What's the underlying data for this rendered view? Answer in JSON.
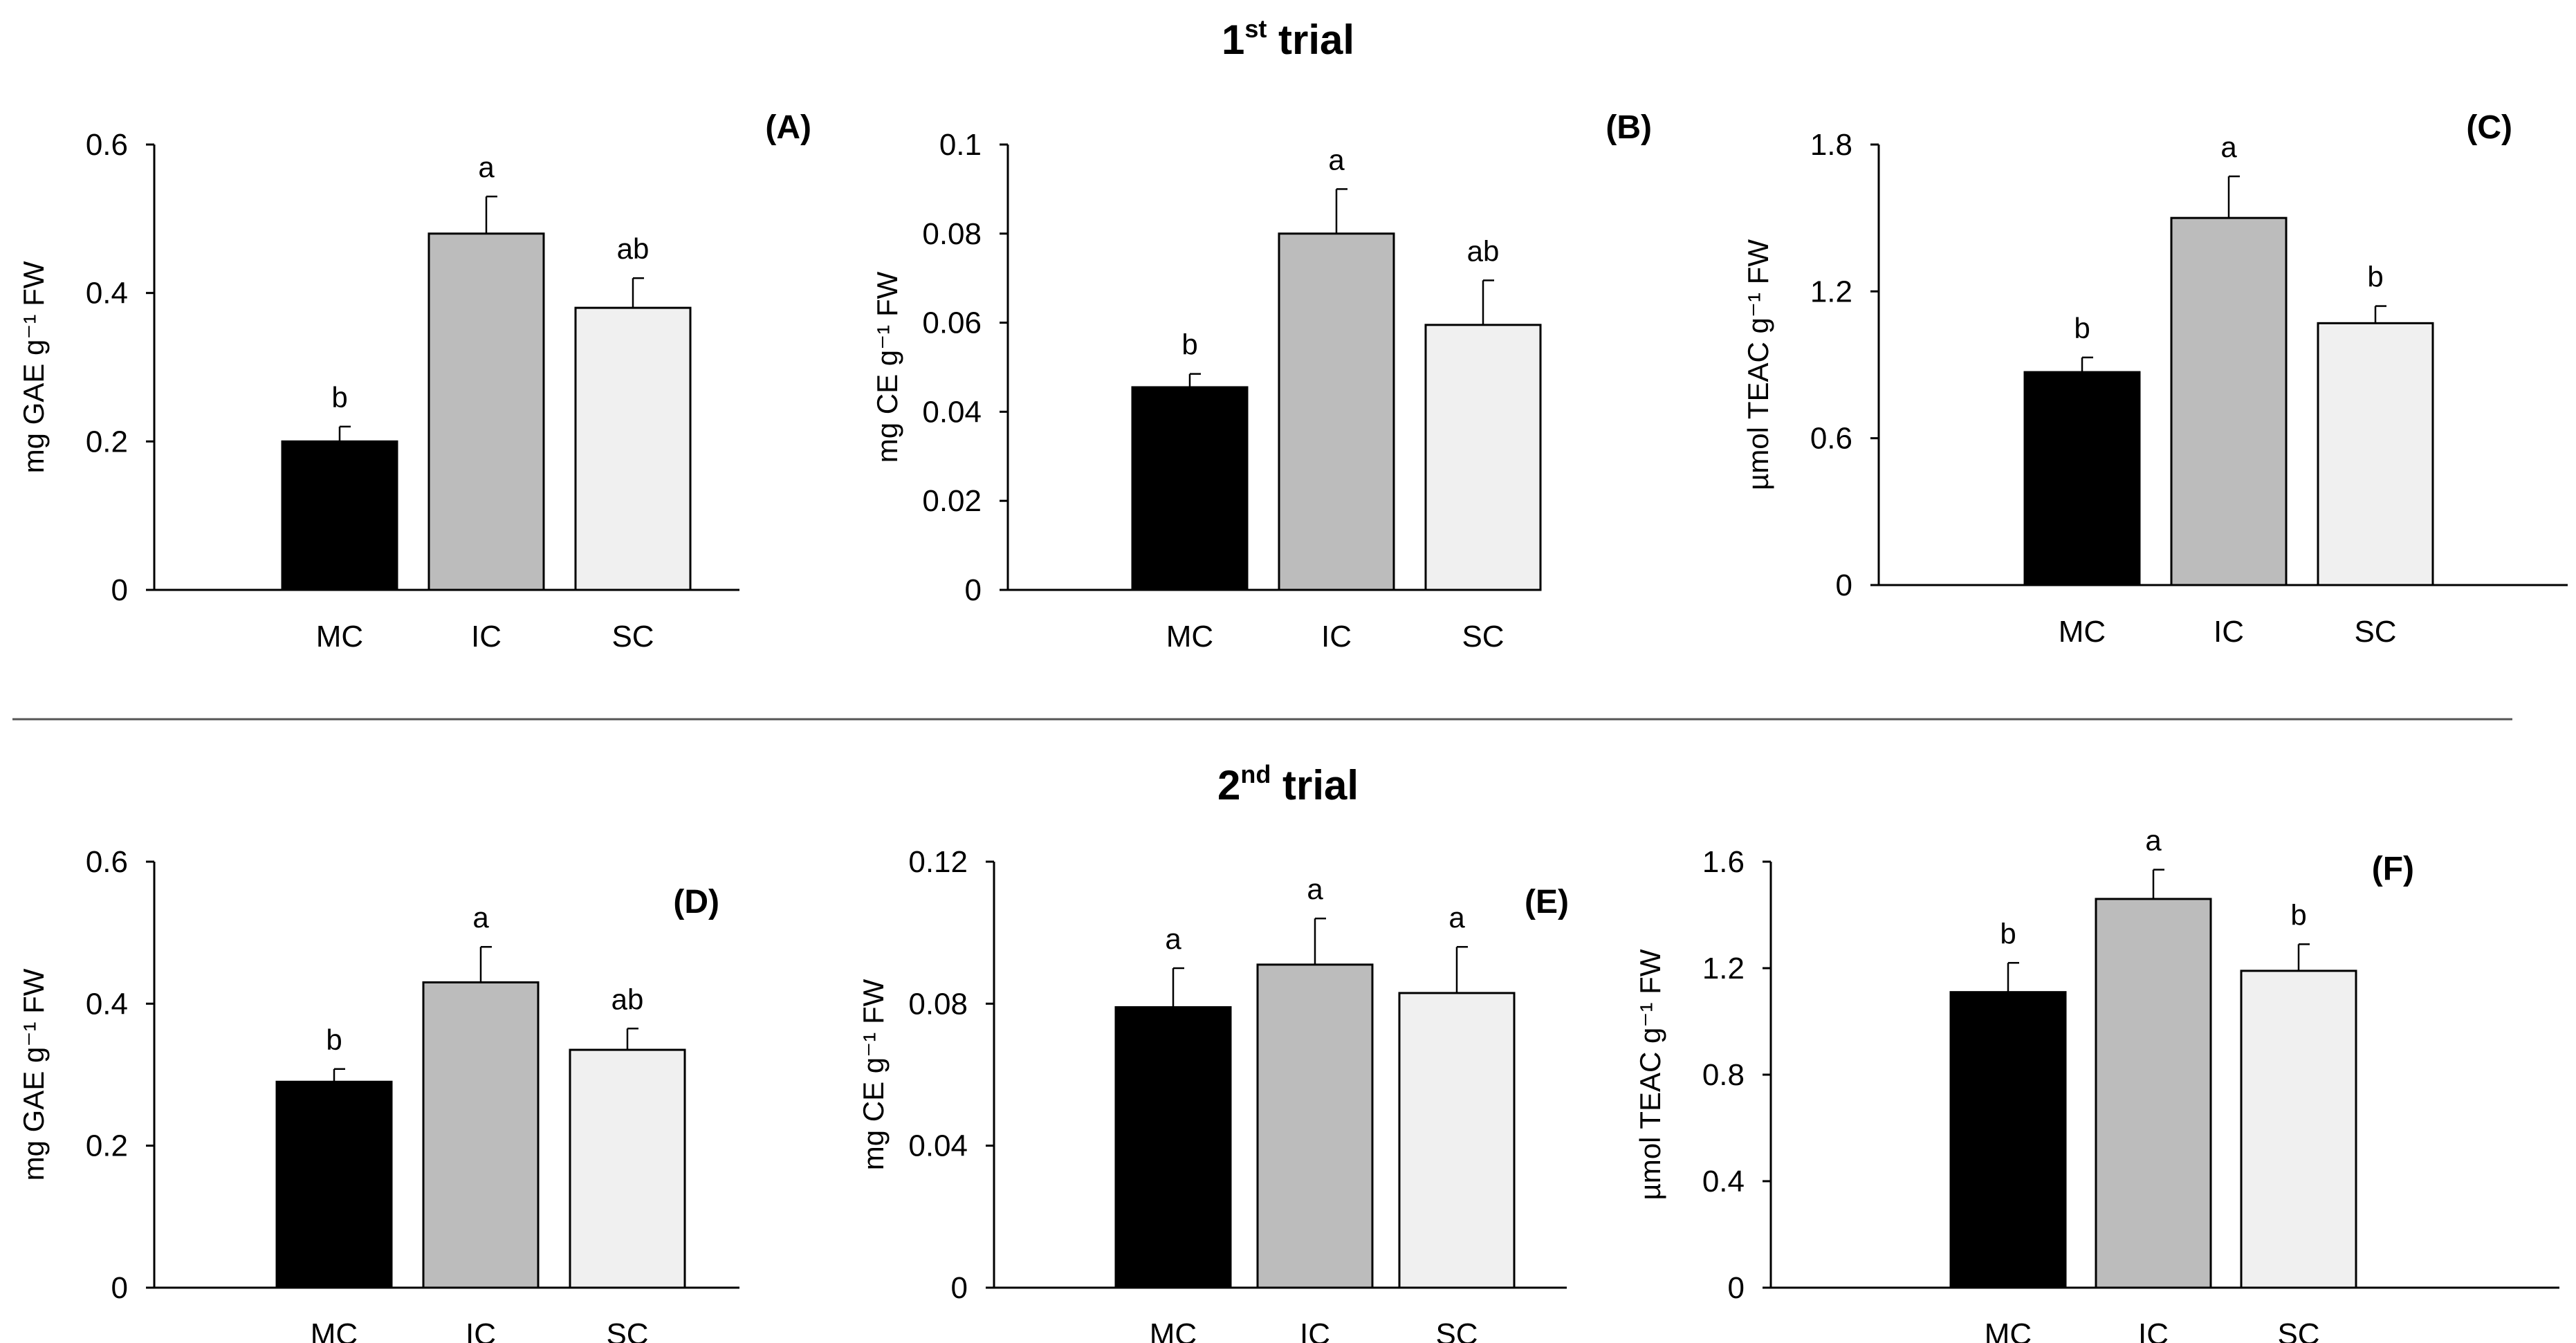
{
  "trials": [
    {
      "label_main": "1",
      "label_sup": "st",
      "label_rest": " trial"
    },
    {
      "label_main": "2",
      "label_sup": "nd",
      "label_rest": " trial"
    }
  ],
  "colors": {
    "MC": "#000000",
    "IC": "#bcbcbc",
    "SC": "#f0f0f0",
    "edge": "#000000"
  },
  "chart_data": [
    {
      "id": "A",
      "panel_label": "(A)",
      "type": "bar",
      "categories": [
        "MC",
        "IC",
        "SC"
      ],
      "values": [
        0.2,
        0.48,
        0.38
      ],
      "errors": [
        0.02,
        0.05,
        0.04
      ],
      "letters": [
        "b",
        "a",
        "ab"
      ],
      "ylabel": "mg GAE  g⁻¹ FW",
      "ylim": [
        0,
        0.6
      ],
      "yticks": [
        0,
        0.2,
        0.4,
        0.6
      ],
      "tick_labels": [
        "0",
        "0.2",
        "0.4",
        "0.6"
      ]
    },
    {
      "id": "B",
      "panel_label": "(B)",
      "type": "bar",
      "categories": [
        "MC",
        "IC",
        "SC"
      ],
      "values": [
        0.0455,
        0.08,
        0.0595
      ],
      "errors": [
        0.003,
        0.01,
        0.01
      ],
      "letters": [
        "b",
        "a",
        "ab"
      ],
      "ylabel": "mg CE  g⁻¹ FW",
      "ylim": [
        0,
        0.1
      ],
      "yticks": [
        0,
        0.02,
        0.04,
        0.06,
        0.08,
        0.1
      ],
      "tick_labels": [
        "0",
        "0.02",
        "0.04",
        "0.06",
        "0.08",
        "0.1"
      ]
    },
    {
      "id": "C",
      "panel_label": "(C)",
      "type": "bar",
      "categories": [
        "MC",
        "IC",
        "SC"
      ],
      "values": [
        0.87,
        1.5,
        1.07
      ],
      "errors": [
        0.06,
        0.17,
        0.07
      ],
      "letters": [
        "b",
        "a",
        "b"
      ],
      "ylabel": "µmol TEAC g⁻¹ FW",
      "ylim": [
        0,
        1.8
      ],
      "yticks": [
        0,
        0.6,
        1.2,
        1.8
      ],
      "tick_labels": [
        "0",
        "0.6",
        "1.2",
        "1.8"
      ]
    },
    {
      "id": "D",
      "panel_label": "(D)",
      "type": "bar",
      "categories": [
        "MC",
        "IC",
        "SC"
      ],
      "values": [
        0.29,
        0.43,
        0.335
      ],
      "errors": [
        0.018,
        0.05,
        0.03
      ],
      "letters": [
        "b",
        "a",
        "ab"
      ],
      "ylabel": "mg GAE  g⁻¹ FW",
      "ylim": [
        0,
        0.6
      ],
      "yticks": [
        0,
        0.2,
        0.4,
        0.6
      ],
      "tick_labels": [
        "0",
        "0.2",
        "0.4",
        "0.6"
      ]
    },
    {
      "id": "E",
      "panel_label": "(E)",
      "type": "bar",
      "categories": [
        "MC",
        "IC",
        "SC"
      ],
      "values": [
        0.079,
        0.091,
        0.083
      ],
      "errors": [
        0.011,
        0.013,
        0.013
      ],
      "letters": [
        "a",
        "a",
        "a"
      ],
      "ylabel": "mg CE  g⁻¹ FW",
      "ylim": [
        0,
        0.12
      ],
      "yticks": [
        0,
        0.04,
        0.08,
        0.12
      ],
      "tick_labels": [
        "0",
        "0.04",
        "0.08",
        "0.12"
      ]
    },
    {
      "id": "F",
      "panel_label": "(F)",
      "type": "bar",
      "categories": [
        "MC",
        "IC",
        "SC"
      ],
      "values": [
        1.11,
        1.46,
        1.19
      ],
      "errors": [
        0.11,
        0.11,
        0.1
      ],
      "letters": [
        "b",
        "a",
        "b"
      ],
      "ylabel": "µmol TEAC g⁻¹ FW",
      "ylim": [
        0,
        1.6
      ],
      "yticks": [
        0,
        0.4,
        0.8,
        1.2,
        1.6
      ],
      "tick_labels": [
        "0",
        "0.4",
        "0.8",
        "1.2",
        "1.6"
      ]
    }
  ]
}
